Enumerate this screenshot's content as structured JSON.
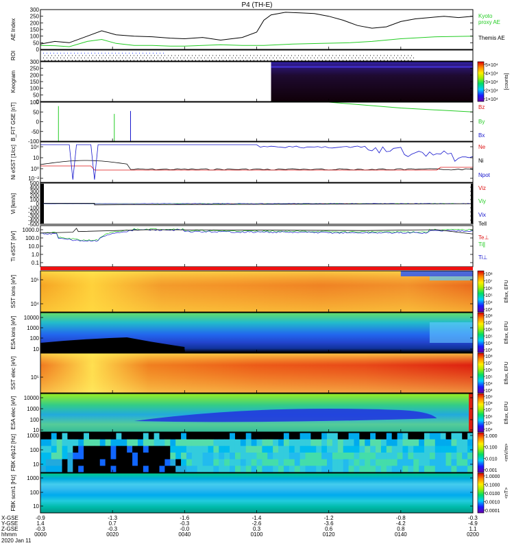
{
  "title": "P4 (TH-E)",
  "footer": {
    "row_labels": [
      "X-GSE",
      "Y-GSE",
      "Z-GSE",
      "hhmm",
      "2020 Jan 11"
    ],
    "columns": [
      {
        "xgse": "-0.9",
        "ygse": "1.4",
        "zgse": "-0.3",
        "hhmm": "0000"
      },
      {
        "xgse": "-1.3",
        "ygse": "0.7",
        "zgse": "-0.3",
        "hhmm": "0020"
      },
      {
        "xgse": "-1.6",
        "ygse": "-0.3",
        "zgse": "-0.0",
        "hhmm": "0040"
      },
      {
        "xgse": "-1.4",
        "ygse": "-2.6",
        "zgse": "0.3",
        "hhmm": "0100"
      },
      {
        "xgse": "-1.2",
        "ygse": "-3.6",
        "zgse": "0.6",
        "hhmm": "0120"
      },
      {
        "xgse": "-0.8",
        "ygse": "-4.2",
        "zgse": "0.8",
        "hhmm": "0140"
      },
      {
        "xgse": "-0.3",
        "ygse": "-4.9",
        "zgse": "1.1",
        "hhmm": "0200"
      }
    ]
  },
  "colors": {
    "green": "#22cc22",
    "red": "#dd1111",
    "blue": "#1111cc",
    "black": "#000000"
  },
  "chart_data": [
    {
      "type": "line",
      "panel": "AE",
      "ylabel": "AE Index",
      "yticks": [
        "300",
        "250",
        "200",
        "150",
        "100",
        "50",
        "0"
      ],
      "ylim": [
        0,
        300
      ],
      "series": [
        {
          "name": "Kyoto proxy AE",
          "color": "#22cc22",
          "x": [
            0,
            4,
            8,
            13,
            17,
            21,
            26,
            31,
            36,
            40,
            45,
            50,
            56,
            62,
            70,
            78,
            86,
            92,
            100,
            110,
            120
          ],
          "y": [
            30,
            28,
            20,
            60,
            75,
            45,
            30,
            30,
            25,
            25,
            30,
            35,
            30,
            30,
            40,
            45,
            50,
            60,
            80,
            95,
            100
          ]
        },
        {
          "name": "Themis AE",
          "color": "#000000",
          "x": [
            0,
            4,
            8,
            13,
            17,
            21,
            26,
            31,
            36,
            40,
            45,
            50,
            56,
            60,
            62,
            64,
            68,
            72,
            76,
            80,
            84,
            88,
            92,
            96,
            100,
            104,
            108,
            112,
            116,
            120
          ],
          "y": [
            40,
            60,
            50,
            100,
            140,
            110,
            100,
            95,
            85,
            80,
            90,
            70,
            90,
            130,
            220,
            260,
            280,
            275,
            270,
            250,
            220,
            180,
            160,
            170,
            210,
            230,
            240,
            250,
            240,
            250
          ]
        }
      ]
    },
    {
      "type": "scatter",
      "panel": "ROI",
      "ylabel": "ROI"
    },
    {
      "type": "heatmap",
      "panel": "Keogram",
      "ylabel": "Keogram",
      "yticks": [
        "300",
        "250",
        "200",
        "150",
        "100",
        "50",
        "0"
      ],
      "ylim": [
        0,
        300
      ],
      "data_start_x": 64,
      "colorbar": {
        "label": "[counts]",
        "ticks": [
          "5×10⁴",
          "4×10⁴",
          "3×10⁴",
          "2×10⁴",
          "1×10⁴"
        ]
      }
    },
    {
      "type": "line",
      "panel": "B_FIT",
      "ylabel": "B_FIT GSE [nT]",
      "yticks": [
        "100",
        "50",
        "0",
        "-50",
        "-100"
      ],
      "ylim": [
        -100,
        100
      ],
      "series": [
        {
          "name": "Bz",
          "color": "#dd1111"
        },
        {
          "name": "By",
          "color": "#22cc22"
        },
        {
          "name": "Bx",
          "color": "#1111cc"
        }
      ]
    },
    {
      "type": "line",
      "panel": "Ni",
      "ylabel": "Ni eSST [1/cc]",
      "yticks": [
        "10⁴",
        "10⁲",
        "10⁰",
        "10⁻²"
      ],
      "series": [
        {
          "name": "Ne",
          "color": "#dd1111"
        },
        {
          "name": "Ni",
          "color": "#000000"
        },
        {
          "name": "Npot",
          "color": "#1111cc"
        }
      ]
    },
    {
      "type": "line",
      "panel": "Vi",
      "ylabel": "Vi [km/s]",
      "yticks": [
        "500",
        "400",
        "300",
        "200",
        "100",
        "0",
        "-100",
        "-200",
        "-300",
        "-400",
        "-500"
      ],
      "ylim": [
        -500,
        500
      ],
      "series": [
        {
          "name": "Viz",
          "color": "#dd1111"
        },
        {
          "name": "Viy",
          "color": "#22cc22"
        },
        {
          "name": "Vix",
          "color": "#1111cc"
        },
        {
          "name": "Tell",
          "color": "#000000"
        }
      ]
    },
    {
      "type": "line",
      "panel": "Ti",
      "ylabel": "Ti eSST [eV]",
      "yticks": [
        "1000.0",
        "100.0",
        "10.0",
        "1.0",
        "0.1"
      ],
      "series": [
        {
          "name": "Te⊥",
          "color": "#dd1111"
        },
        {
          "name": "Ti∥",
          "color": "#22cc22"
        },
        {
          "name": "Ti⊥",
          "color": "#1111cc"
        }
      ]
    },
    {
      "type": "heatmap",
      "panel": "SST_ion",
      "ylabel": "SST ions [eV]",
      "yticks": [
        "10⁵",
        "10⁴"
      ],
      "colorbar": {
        "label": "Eflux, EFU",
        "ticks": [
          "10⁸",
          "10⁷",
          "10⁶",
          "10⁵",
          "10⁴",
          "10³"
        ]
      }
    },
    {
      "type": "heatmap",
      "panel": "ESA_ion",
      "ylabel": "ESA ions [eV]",
      "yticks": [
        "10000",
        "1000",
        "100",
        "10"
      ],
      "colorbar": {
        "label": "Eflux, EFU",
        "ticks": [
          "10⁸",
          "10⁷",
          "10⁶",
          "10⁵",
          "10⁴",
          "10³"
        ]
      }
    },
    {
      "type": "heatmap",
      "panel": "SST_elec",
      "ylabel": "SST elec [eV]",
      "yticks": [
        "10⁵"
      ],
      "colorbar": {
        "label": "Eflux, EFU",
        "ticks": [
          "10⁸",
          "10⁷",
          "10⁶",
          "10⁵",
          "10⁴",
          "10³"
        ]
      }
    },
    {
      "type": "heatmap",
      "panel": "ESA_elec",
      "ylabel": "ESA elec [eV]",
      "yticks": [
        "10000",
        "1000",
        "100",
        "10"
      ],
      "colorbar": {
        "label": "Eflux, EFU",
        "ticks": [
          "10⁹",
          "10⁸",
          "10⁷",
          "10⁶",
          "10⁵",
          "10⁴"
        ]
      }
    },
    {
      "type": "heatmap",
      "panel": "FBK_E",
      "ylabel": "FBK efp12 [Hz]",
      "yticks": [
        "1000",
        "100",
        "10"
      ],
      "colorbar": {
        "label": "<mV/m>",
        "ticks": [
          "1.000",
          "0.100",
          "0.010",
          "0.001"
        ]
      }
    },
    {
      "type": "heatmap",
      "panel": "FBK_B",
      "ylabel": "FBK scm1 [Hz]",
      "yticks": [
        "1000",
        "100",
        "10"
      ],
      "colorbar": {
        "label": "<nT>",
        "ticks": [
          "1.0000",
          "0.1000",
          "0.0100",
          "0.0010",
          "0.0001"
        ]
      }
    }
  ]
}
